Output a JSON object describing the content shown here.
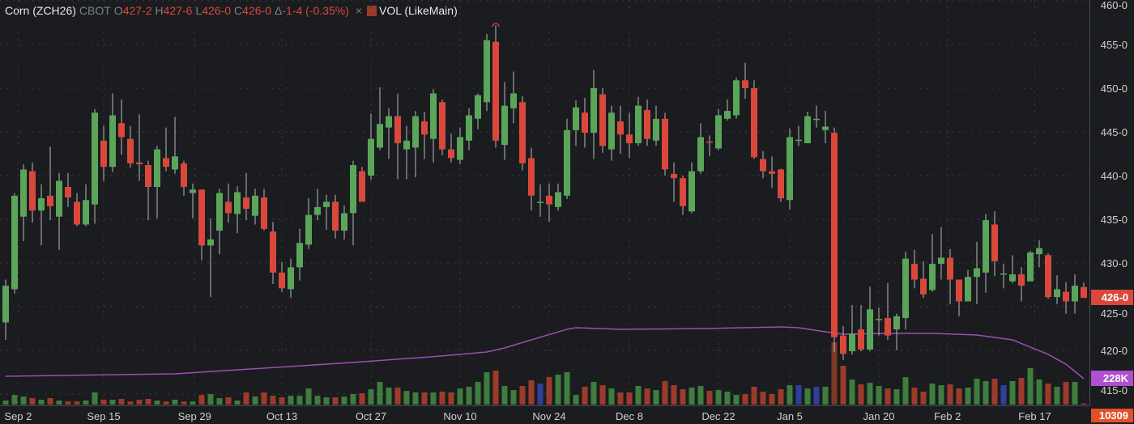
{
  "header": {
    "symbol": "Corn (ZCH26)",
    "exchange": "CBOT",
    "open_label": "O",
    "open": "427-2",
    "high_label": "H",
    "high": "427-6",
    "low_label": "L",
    "low": "426-0",
    "close_label": "C",
    "close": "426-0",
    "change_label": "Δ",
    "change": "-1-4 (-0.35%)",
    "close_icon": "×",
    "volume_study": "VOL (LikeMain)"
  },
  "tags": {
    "last_price": "426-0",
    "volume_ma": "228K",
    "volume_last": "10309"
  },
  "colors": {
    "up": "#5aa55a",
    "down": "#d9483b",
    "vol_up": "#3e7d3e",
    "vol_down": "#9c3b2a",
    "vol_blue": "#2f3f9a",
    "vol_big": "#7a3a25",
    "ma": "#9b4fb0",
    "last_tag": "#d9483b",
    "ma_tag": "#b04fd0",
    "vol_tag": "#e0502a"
  },
  "chart_data": {
    "type": "candlestick",
    "title": "Corn (ZCH26) CBOT",
    "ylim": [
      414,
      460
    ],
    "y_ticks": [
      "460-0",
      "455-0",
      "450-0",
      "445-0",
      "440-0",
      "435-0",
      "430-0",
      "425-0",
      "420-0",
      "415-0"
    ],
    "y_tick_values": [
      460,
      455,
      450,
      445,
      440,
      435,
      430,
      425,
      420,
      415
    ],
    "x_ticks": [
      {
        "label": "Sep 2",
        "index": 2.4
      },
      {
        "label": "Sep 15",
        "index": 12
      },
      {
        "label": "Sep 29",
        "index": 22.2
      },
      {
        "label": "Oct 13",
        "index": 32
      },
      {
        "label": "Oct 27",
        "index": 42
      },
      {
        "label": "Nov 10",
        "index": 52
      },
      {
        "label": "Nov 24",
        "index": 62
      },
      {
        "label": "Dec 8",
        "index": 71
      },
      {
        "label": "Dec 22",
        "index": 81
      },
      {
        "label": "Jan 5",
        "index": 89
      },
      {
        "label": "Jan 20",
        "index": 99
      },
      {
        "label": "Feb 2",
        "index": 106.7
      },
      {
        "label": "Feb 17",
        "index": 116.5
      }
    ],
    "ohlc": [
      [
        423.2,
        428.1,
        421.2,
        427.4
      ],
      [
        427,
        438,
        426.5,
        437.7
      ],
      [
        435.3,
        441.3,
        432.5,
        440.7
      ],
      [
        440.5,
        441.5,
        434.6,
        436
      ],
      [
        436,
        439,
        432,
        437.4
      ],
      [
        437.7,
        443.3,
        434.9,
        436.5
      ],
      [
        435.3,
        440.3,
        431.5,
        439.4
      ],
      [
        438.7,
        440.3,
        436.4,
        437.5
      ],
      [
        437,
        438,
        434.2,
        434.4
      ],
      [
        434.4,
        439,
        434.2,
        437.2
      ],
      [
        436.7,
        447.6,
        434.5,
        447.2
      ],
      [
        444,
        445.7,
        439.4,
        441
      ],
      [
        441,
        449.4,
        440.4,
        446.9
      ],
      [
        446,
        448.7,
        442.4,
        444.4
      ],
      [
        444.2,
        445.7,
        440.9,
        441.4
      ],
      [
        441.5,
        447,
        439.4,
        441.3
      ],
      [
        441.2,
        441.7,
        434.9,
        438.7
      ],
      [
        438.7,
        443.4,
        435.1,
        443
      ],
      [
        442,
        445.5,
        440.5,
        441
      ],
      [
        440.7,
        446.7,
        440.2,
        442.2
      ],
      [
        441.4,
        441.7,
        437.7,
        438.7
      ],
      [
        438,
        439.1,
        435.1,
        438.4
      ],
      [
        438.4,
        438.4,
        430.3,
        432
      ],
      [
        432,
        435.1,
        426.1,
        432.7
      ],
      [
        433.7,
        438.5,
        431,
        438
      ],
      [
        437,
        439.1,
        434.6,
        435.7
      ],
      [
        435.6,
        438.8,
        433.4,
        438.1
      ],
      [
        437.5,
        440.3,
        434.9,
        436.2
      ],
      [
        435.4,
        438.5,
        434.4,
        437.7
      ],
      [
        437.5,
        438.5,
        433.7,
        433.9
      ],
      [
        433.6,
        434.7,
        427.6,
        428.9
      ],
      [
        428.9,
        430.1,
        426.7,
        427.1
      ],
      [
        427,
        430.5,
        426,
        429.5
      ],
      [
        429.5,
        433.9,
        428,
        432.3
      ],
      [
        432.1,
        437.4,
        431.6,
        435.5
      ],
      [
        435.5,
        438.5,
        434.9,
        436.4
      ],
      [
        436.4,
        437.8,
        433.8,
        437
      ],
      [
        437,
        437.8,
        432.8,
        433.7
      ],
      [
        433.7,
        436.6,
        432.7,
        435.7
      ],
      [
        435.7,
        441.7,
        432,
        441.2
      ],
      [
        440.5,
        441,
        437,
        437
      ],
      [
        440,
        447.1,
        439.5,
        444.2
      ],
      [
        443.2,
        450.1,
        442.9,
        445.9
      ],
      [
        445.5,
        447.7,
        441.9,
        446.8
      ],
      [
        446.8,
        449.4,
        439.6,
        443.7
      ],
      [
        443,
        445.7,
        439.6,
        444
      ],
      [
        443.2,
        447.4,
        439.8,
        446.8
      ],
      [
        446.2,
        447.3,
        441.9,
        444.7
      ],
      [
        444.2,
        449.9,
        441.5,
        449.4
      ],
      [
        448.4,
        448.7,
        442.3,
        443
      ],
      [
        443,
        444.8,
        441.5,
        442
      ],
      [
        441.8,
        445.5,
        441.3,
        444.4
      ],
      [
        444,
        447.7,
        442.9,
        446.9
      ],
      [
        446.5,
        449.4,
        445.3,
        449.2
      ],
      [
        448.4,
        456.2,
        447.4,
        455.5
      ],
      [
        455.3,
        457.2,
        443.2,
        444
      ],
      [
        443.5,
        450.7,
        441.8,
        448
      ],
      [
        447.7,
        451.9,
        446,
        449.4
      ],
      [
        448.4,
        449.1,
        440.6,
        441.4
      ],
      [
        442,
        443.2,
        436,
        437.7
      ],
      [
        436.9,
        439,
        435.3,
        437
      ],
      [
        437.7,
        439.1,
        434.7,
        436.7
      ],
      [
        436.4,
        439.1,
        436,
        438.1
      ],
      [
        437.7,
        446.5,
        437.3,
        445.2
      ],
      [
        445.2,
        448.6,
        443.4,
        447.8
      ],
      [
        447.2,
        448.9,
        443.2,
        444.9
      ],
      [
        444.9,
        452.1,
        441.9,
        450
      ],
      [
        449.3,
        450,
        442.6,
        443.4
      ],
      [
        443,
        448,
        441.7,
        447.2
      ],
      [
        446.2,
        448,
        442.5,
        444.7
      ],
      [
        444.7,
        447.2,
        442,
        443.7
      ],
      [
        443.7,
        449,
        443.4,
        448
      ],
      [
        447.5,
        448.7,
        443.4,
        444.2
      ],
      [
        444,
        448,
        443.4,
        446.5
      ],
      [
        446.5,
        447.2,
        440,
        440.7
      ],
      [
        440.2,
        441.5,
        437,
        439.7
      ],
      [
        439.7,
        440,
        435.5,
        436.5
      ],
      [
        435.9,
        441.5,
        435.7,
        440.5
      ],
      [
        440.5,
        446,
        440.2,
        444.4
      ],
      [
        443.9,
        444.6,
        442.2,
        443.8
      ],
      [
        443.1,
        447.6,
        442.9,
        446.9
      ],
      [
        446.5,
        448.7,
        446.3,
        447.4
      ],
      [
        446.9,
        451.2,
        446.5,
        450.9
      ],
      [
        450.9,
        452.9,
        448.8,
        450
      ],
      [
        450,
        450.9,
        441.9,
        442.1
      ],
      [
        441.9,
        442.8,
        439.7,
        440.5
      ],
      [
        440.5,
        442.2,
        438.6,
        440.2
      ],
      [
        440.7,
        440.8,
        437,
        437.4
      ],
      [
        437.2,
        445.4,
        436.1,
        444.4
      ],
      [
        444,
        445.7,
        443.4,
        444.1
      ],
      [
        443.7,
        447.3,
        443.7,
        446.8
      ],
      [
        446.4,
        448,
        445.5,
        446.5
      ],
      [
        445.2,
        447.4,
        443.7,
        445.6
      ],
      [
        444.9,
        445.5,
        419.8,
        421.5
      ],
      [
        421.7,
        422.8,
        418.9,
        419.6
      ],
      [
        419.9,
        425.2,
        419.5,
        421.9
      ],
      [
        422.4,
        425.2,
        419.9,
        420.1
      ],
      [
        420.1,
        427.3,
        419.9,
        424.7
      ],
      [
        423.5,
        424.9,
        421.7,
        423.6
      ],
      [
        423.7,
        427.7,
        421.2,
        421.7
      ],
      [
        422.4,
        424.2,
        420,
        423.9
      ],
      [
        423.7,
        431.3,
        422.4,
        430.5
      ],
      [
        429.9,
        431.5,
        427.1,
        428.1
      ],
      [
        428.2,
        430.2,
        426,
        426.4
      ],
      [
        426.9,
        433.3,
        426.7,
        429.9
      ],
      [
        429.9,
        434.1,
        428.1,
        430.6
      ],
      [
        430.6,
        431.6,
        425.3,
        428.1
      ],
      [
        428.1,
        428.1,
        423.9,
        425.6
      ],
      [
        425.6,
        429.2,
        425.6,
        428.4
      ],
      [
        428.4,
        432.4,
        425.3,
        429.4
      ],
      [
        428.9,
        435.6,
        426.6,
        434.9
      ],
      [
        434.4,
        435.9,
        428.5,
        430.2
      ],
      [
        428.8,
        429.9,
        427.1,
        428.8
      ],
      [
        427.9,
        430.9,
        427.7,
        428.7
      ],
      [
        428.7,
        429.5,
        425.6,
        427.4
      ],
      [
        427.9,
        431.4,
        427.9,
        431.2
      ],
      [
        431,
        432.6,
        429.5,
        431.7
      ],
      [
        430.9,
        431.1,
        425.9,
        426.1
      ],
      [
        426.1,
        428.6,
        425.3,
        427
      ],
      [
        426.7,
        427.8,
        424.2,
        425.6
      ],
      [
        425.6,
        428.7,
        424.2,
        427.4
      ],
      [
        427.25,
        427.75,
        426,
        426
      ]
    ],
    "volume_k": [
      36,
      85,
      71,
      57,
      43,
      57,
      36,
      28,
      28,
      36,
      107,
      43,
      43,
      50,
      28,
      43,
      50,
      36,
      28,
      43,
      28,
      28,
      85,
      93,
      57,
      64,
      36,
      107,
      71,
      107,
      78,
      64,
      78,
      78,
      142,
      78,
      64,
      64,
      71,
      93,
      100,
      135,
      200,
      150,
      150,
      121,
      107,
      107,
      107,
      114,
      107,
      142,
      157,
      200,
      285,
      299,
      164,
      128,
      164,
      214,
      185,
      242,
      264,
      285,
      85,
      157,
      200,
      171,
      142,
      107,
      107,
      164,
      142,
      128,
      207,
      171,
      135,
      150,
      164,
      121,
      128,
      114,
      85,
      93,
      157,
      114,
      93,
      135,
      171,
      171,
      142,
      157,
      157,
      549,
      342,
      221,
      178,
      192,
      164,
      142,
      135,
      242,
      150,
      114,
      185,
      171,
      178,
      142,
      150,
      228,
      207,
      228,
      171,
      207,
      235,
      321,
      221,
      185,
      157,
      200,
      200,
      10.309
    ],
    "volume_blue_indices": [
      61,
      90,
      92,
      113
    ],
    "volume_ma_k": [
      [
        1,
        249
      ],
      [
        20,
        271
      ],
      [
        30,
        321
      ],
      [
        40,
        371
      ],
      [
        50,
        428
      ],
      [
        55,
        463
      ],
      [
        57,
        499
      ],
      [
        60,
        570
      ],
      [
        64,
        663
      ],
      [
        65,
        677
      ],
      [
        70,
        663
      ],
      [
        80,
        670
      ],
      [
        88,
        684
      ],
      [
        90,
        677
      ],
      [
        93,
        641
      ],
      [
        95,
        620
      ],
      [
        100,
        627
      ],
      [
        105,
        627
      ],
      [
        110,
        613
      ],
      [
        114,
        570
      ],
      [
        118,
        442
      ],
      [
        120,
        356
      ],
      [
        122,
        228
      ]
    ]
  }
}
